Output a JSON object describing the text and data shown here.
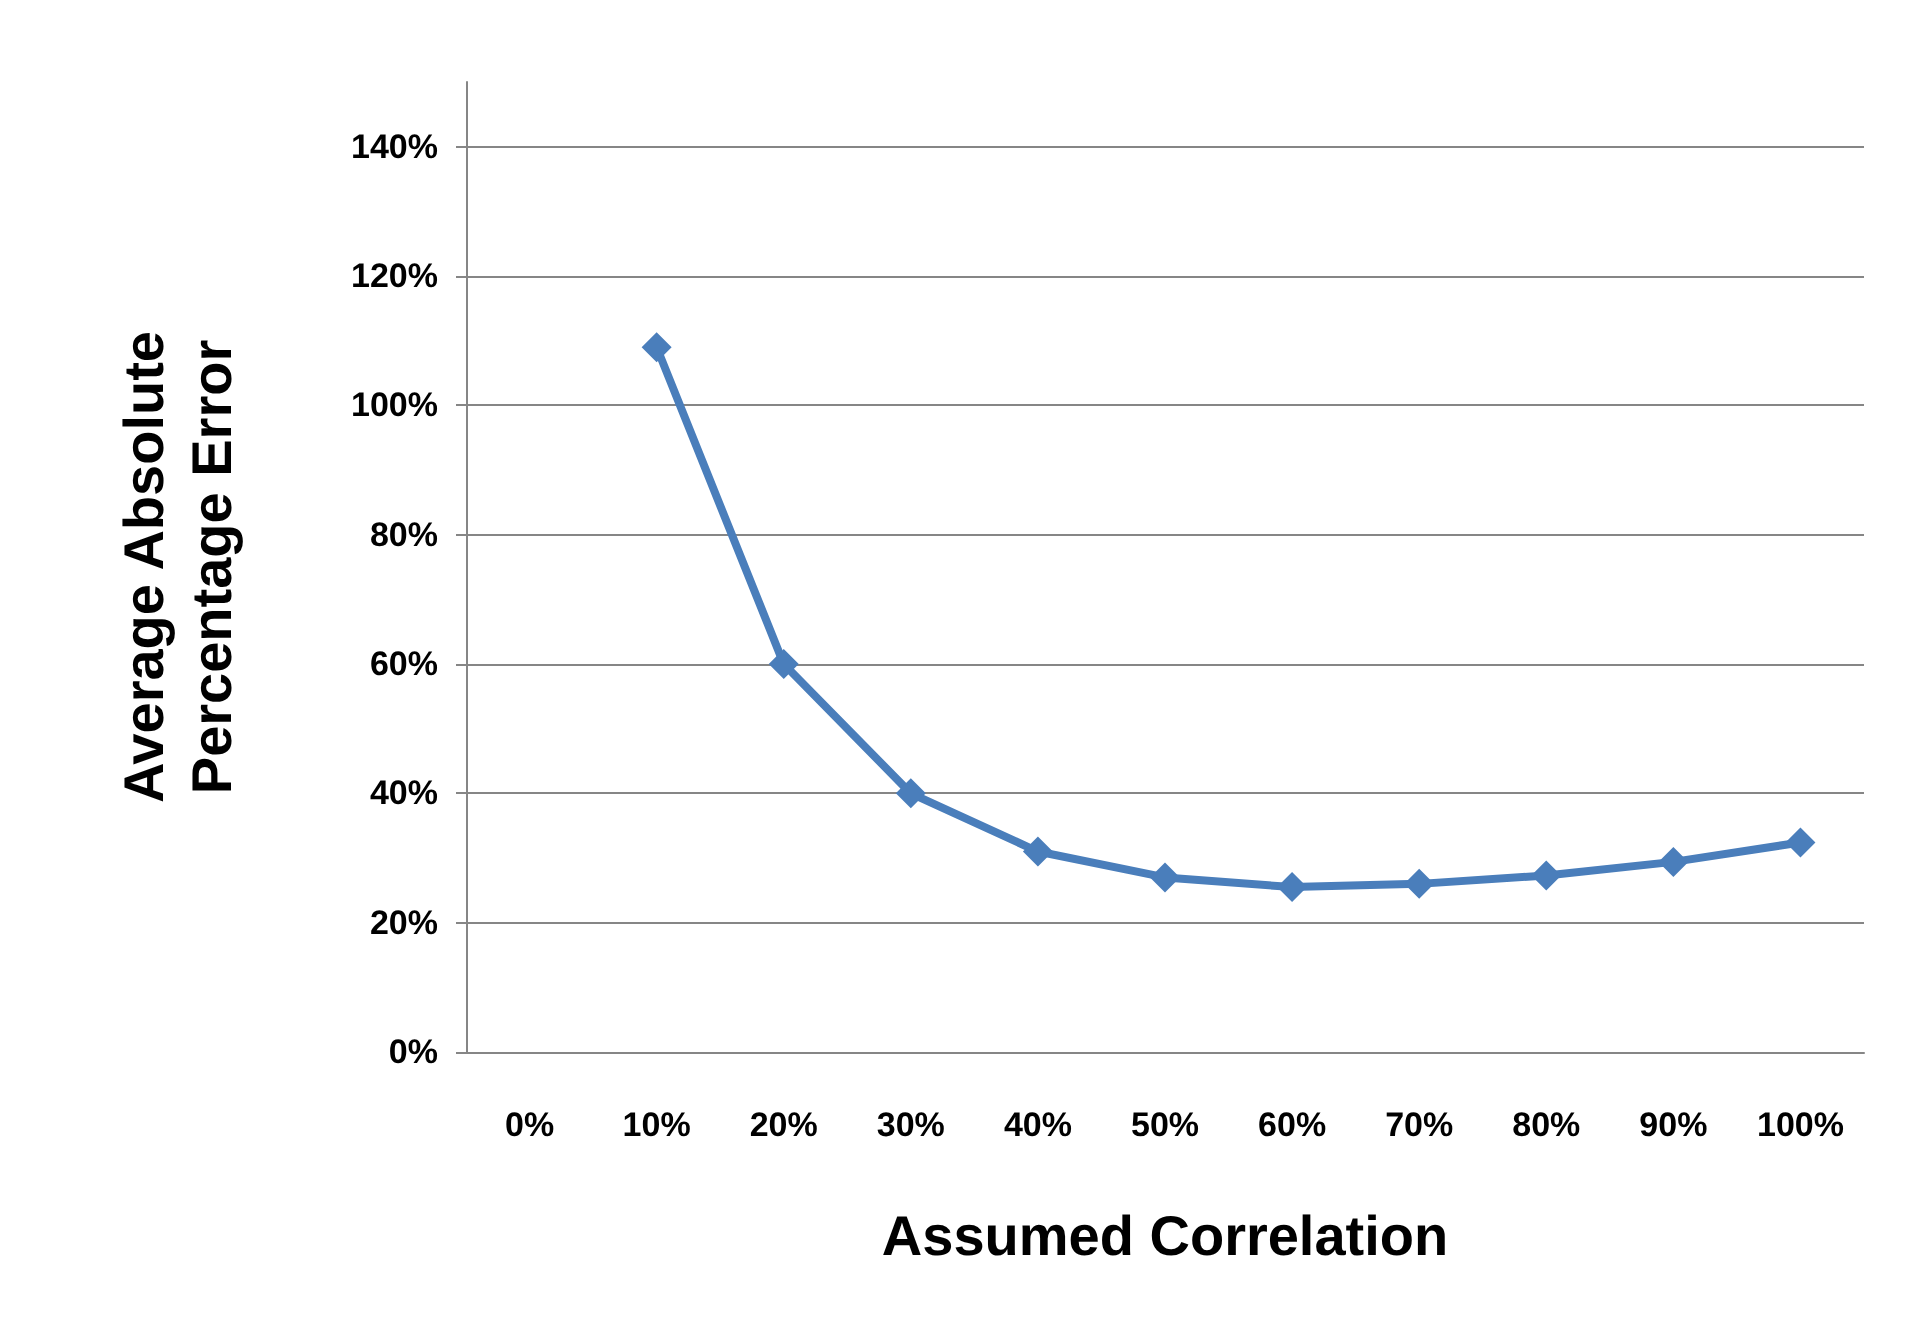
{
  "chart_data": {
    "type": "line",
    "xlabel": "Assumed Correlation",
    "ylabel": "Average Absolute\nPercentage Error",
    "categories": [
      "0%",
      "10%",
      "20%",
      "30%",
      "40%",
      "50%",
      "60%",
      "70%",
      "80%",
      "90%",
      "100%"
    ],
    "series": [
      {
        "color": "#4a7ebb",
        "values": [
          null,
          109,
          60,
          40,
          31,
          27,
          25.5,
          26,
          27.3,
          29.4,
          32.4
        ]
      }
    ],
    "ylim": [
      0,
      150
    ],
    "yticks": [
      {
        "value": 0,
        "label": "0%"
      },
      {
        "value": 20,
        "label": "20%"
      },
      {
        "value": 40,
        "label": "40%"
      },
      {
        "value": 60,
        "label": "60%"
      },
      {
        "value": 80,
        "label": "80%"
      },
      {
        "value": 100,
        "label": "100%"
      },
      {
        "value": 120,
        "label": "120%"
      },
      {
        "value": 140,
        "label": "140%"
      }
    ],
    "grid": "y",
    "marker": "diamond",
    "line_style": "solid"
  }
}
